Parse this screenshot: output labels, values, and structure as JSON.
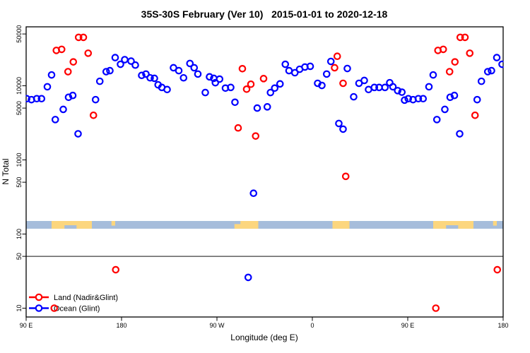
{
  "page": {
    "background": "#ffffff"
  },
  "chart_data": {
    "type": "scatter",
    "title": "35S-30S February (Ver 10)   2015-01-01 to 2020-12-18",
    "xlabel": "Longitude (deg E)",
    "ylabel": "N Total",
    "x_axis": {
      "range_deg_east": [
        90,
        540
      ],
      "ticks": [
        {
          "value": 90,
          "label": "90 E"
        },
        {
          "value": 180,
          "label": "180"
        },
        {
          "value": 270,
          "label": "90 W"
        },
        {
          "value": 360,
          "label": "0"
        },
        {
          "value": 450,
          "label": "90 E"
        },
        {
          "value": 540,
          "label": "180"
        }
      ]
    },
    "y_axis": {
      "scale": "log",
      "range": [
        7.5,
        62000
      ],
      "ticks": [
        {
          "value": 10,
          "label": "10"
        },
        {
          "value": 50,
          "label": "50"
        },
        {
          "value": 100,
          "label": "100"
        },
        {
          "value": 500,
          "label": "500"
        },
        {
          "value": 1000,
          "label": "1000"
        },
        {
          "value": 5000,
          "label": "5000"
        },
        {
          "value": 10000,
          "label": "10000"
        },
        {
          "value": 50000,
          "label": "50000"
        }
      ]
    },
    "reference_line_n": 50,
    "map_band": {
      "description": "coastline strip for latitude band 35S-30S",
      "top_n": 150,
      "bottom_n": 118,
      "ocean_color": "#a6bddb",
      "land_color": "#fcd67e",
      "land_segments": [
        {
          "from": 114,
          "to": 152,
          "notch": "bottom"
        },
        {
          "from": 170.5,
          "to": 174,
          "thin": true
        },
        {
          "from": 286.5,
          "to": 309,
          "notch": "top-left"
        },
        {
          "from": 379,
          "to": 395
        },
        {
          "from": 474,
          "to": 512,
          "notch": "bottom"
        },
        {
          "from": 530.5,
          "to": 534,
          "thin": true
        }
      ]
    },
    "legend": {
      "position": "bottom-left"
    },
    "series": [
      {
        "name": "Land (Nadir&Glint)",
        "color": "#ff0000",
        "points": [
          [
            139.5,
            45000
          ],
          [
            144,
            45000
          ],
          [
            118.5,
            30000
          ],
          [
            123.5,
            31000
          ],
          [
            134.5,
            21000
          ],
          [
            129.5,
            15500
          ],
          [
            148.5,
            27500
          ],
          [
            153.5,
            4000
          ],
          [
            294,
            17000
          ],
          [
            298,
            9000
          ],
          [
            302,
            10500
          ],
          [
            314,
            12500
          ],
          [
            290,
            2700
          ],
          [
            306.5,
            2100
          ],
          [
            381,
            17500
          ],
          [
            383.5,
            25000
          ],
          [
            389,
            10800
          ],
          [
            391.5,
            600
          ],
          [
            116.5,
            10
          ],
          [
            174.5,
            33
          ],
          [
            499.5,
            45000
          ],
          [
            504,
            45000
          ],
          [
            478.5,
            30000
          ],
          [
            483.5,
            31000
          ],
          [
            494.5,
            21000
          ],
          [
            489.5,
            15500
          ],
          [
            508.5,
            27500
          ],
          [
            513.5,
            4000
          ],
          [
            476.5,
            10
          ],
          [
            534.5,
            33
          ]
        ]
      },
      {
        "name": "Ocean (Glint)",
        "color": "#0000ff",
        "points": [
          [
            90.5,
            6700
          ],
          [
            95,
            6500
          ],
          [
            100,
            6700
          ],
          [
            104.5,
            6700
          ],
          [
            110,
            9700
          ],
          [
            114,
            14000
          ],
          [
            117.5,
            3500
          ],
          [
            125,
            4800
          ],
          [
            130,
            7000
          ],
          [
            134,
            7400
          ],
          [
            139,
            2250
          ],
          [
            155.5,
            6500
          ],
          [
            159.5,
            11500
          ],
          [
            165.5,
            15500
          ],
          [
            169,
            16000
          ],
          [
            174,
            24000
          ],
          [
            179,
            19500
          ],
          [
            183,
            22500
          ],
          [
            189,
            21500
          ],
          [
            193,
            19000
          ],
          [
            199,
            13800
          ],
          [
            203,
            14400
          ],
          [
            207,
            12800
          ],
          [
            211,
            12600
          ],
          [
            214.5,
            10300
          ],
          [
            218,
            9500
          ],
          [
            223,
            8900
          ],
          [
            229,
            17500
          ],
          [
            234,
            16000
          ],
          [
            238.5,
            12800
          ],
          [
            244.5,
            20000
          ],
          [
            248.5,
            17500
          ],
          [
            252,
            14400
          ],
          [
            259,
            8100
          ],
          [
            263,
            13200
          ],
          [
            267,
            12600
          ],
          [
            268.5,
            11000
          ],
          [
            272.5,
            12300
          ],
          [
            278,
            9300
          ],
          [
            283,
            9500
          ],
          [
            287,
            6000
          ],
          [
            299.5,
            26
          ],
          [
            304.5,
            355
          ],
          [
            308,
            5000
          ],
          [
            317.5,
            5200
          ],
          [
            320.5,
            8100
          ],
          [
            324.5,
            9300
          ],
          [
            329.5,
            10600
          ],
          [
            334.5,
            19500
          ],
          [
            338,
            16000
          ],
          [
            343.5,
            15000
          ],
          [
            348,
            16700
          ],
          [
            353,
            17900
          ],
          [
            358,
            18300
          ],
          [
            365,
            10800
          ],
          [
            369,
            10100
          ],
          [
            373.5,
            14400
          ],
          [
            377.5,
            21300
          ],
          [
            385,
            3100
          ],
          [
            389,
            2600
          ],
          [
            393,
            17100
          ],
          [
            399,
            7100
          ],
          [
            404,
            10800
          ],
          [
            409,
            11800
          ],
          [
            413,
            8900
          ],
          [
            418.5,
            9500
          ],
          [
            423,
            9500
          ],
          [
            428.5,
            9500
          ],
          [
            433,
            11000
          ],
          [
            436,
            9700
          ],
          [
            440.5,
            8600
          ],
          [
            444.5,
            8200
          ],
          [
            447,
            6400
          ],
          [
            450.5,
            6700
          ],
          [
            455,
            6500
          ],
          [
            460,
            6700
          ],
          [
            464.5,
            6700
          ],
          [
            470,
            9700
          ],
          [
            474,
            14000
          ],
          [
            477.5,
            3500
          ],
          [
            485,
            4800
          ],
          [
            490,
            7000
          ],
          [
            494,
            7400
          ],
          [
            499,
            2250
          ],
          [
            515.5,
            6500
          ],
          [
            519.5,
            11500
          ],
          [
            525.5,
            15500
          ],
          [
            529,
            16000
          ],
          [
            534,
            24000
          ],
          [
            539,
            19500
          ]
        ]
      }
    ]
  }
}
